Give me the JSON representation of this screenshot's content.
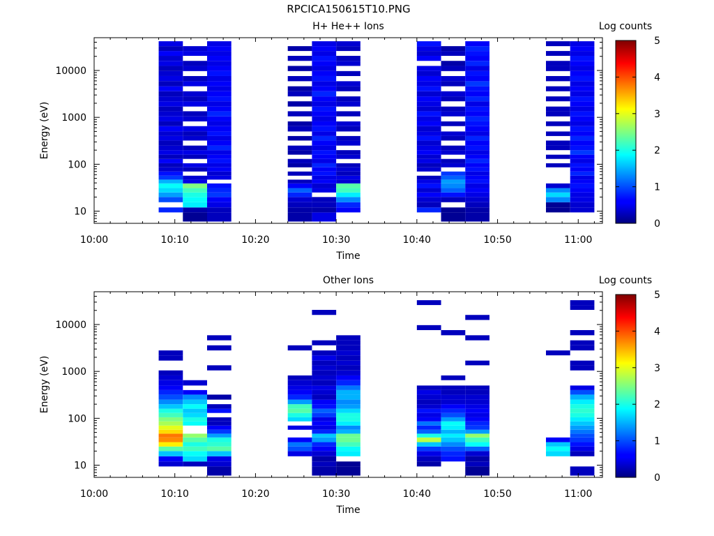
{
  "figure_title": "RPCICA150615T10.PNG",
  "chart_data": [
    {
      "type": "heatmap",
      "title": "H+ He++ Ions",
      "xlabel": "Time",
      "ylabel": "Energy (eV)",
      "yscale": "log",
      "ylim": [
        5.5,
        50000
      ],
      "xlim": [
        "10:00",
        "11:03"
      ],
      "xticks": [
        "10:00",
        "10:10",
        "10:20",
        "10:30",
        "10:40",
        "10:50",
        "11:00"
      ],
      "yticks": [
        "10",
        "100",
        "1000",
        "10000"
      ],
      "colorbar": {
        "label": "Log counts",
        "range": [
          0,
          5
        ],
        "ticks": [
          "0",
          "1",
          "2",
          "3",
          "4",
          "5"
        ]
      },
      "energy_bins_eV": [
        6,
        9.4,
        12,
        15.5,
        20,
        25,
        31,
        39,
        47,
        57,
        70,
        86,
        105,
        130,
        160,
        200,
        250,
        320,
        400,
        500,
        650,
        820,
        1050,
        1350,
        1700,
        2200,
        2800,
        3600,
        4600,
        5900,
        7600,
        9700,
        12500,
        16000,
        20500,
        26000,
        33000,
        42000
      ],
      "time_columns": [
        {
          "start": "10:08",
          "end": "10:11",
          "counts": [
            0,
            0.8,
            0,
            1.0,
            1.4,
            1.7,
            1.9,
            1.5,
            0.9,
            0.7,
            0.4,
            0.3,
            0.6,
            0.3,
            0.5,
            0.4,
            0.3,
            0.5,
            0.4,
            0.6,
            0.3,
            0.5,
            0.4,
            0.3,
            0.5,
            0.4,
            0.3,
            0.6,
            0.3,
            0.5,
            0.4,
            0.3,
            0.5,
            0.4,
            0.6,
            0.3,
            0.5
          ]
        },
        {
          "start": "10:11",
          "end": "10:14",
          "counts": [
            0.1,
            0.2,
            1.8,
            1.9,
            2.0,
            2.2,
            2.5,
            0.5,
            0.4,
            0,
            0.3,
            0.5,
            0,
            0.3,
            0.5,
            0.3,
            0,
            0.4,
            0.3,
            0.5,
            0,
            0.4,
            0.3,
            0,
            0.5,
            0.3,
            0.4,
            0,
            0.5,
            0.3,
            0,
            0.4,
            0.3,
            0,
            0.5,
            0.4,
            0
          ]
        },
        {
          "start": "10:14",
          "end": "10:17",
          "counts": [
            0.3,
            0.3,
            0.5,
            0.6,
            0.9,
            0.8,
            0.7,
            0,
            0.5,
            0.4,
            0.6,
            0.5,
            0.7,
            0.6,
            0.5,
            0.8,
            0.6,
            0.5,
            0.7,
            0.6,
            0.5,
            0.6,
            0.8,
            0.6,
            0.5,
            0.7,
            0.6,
            0.5,
            0.6,
            0.5,
            0.7,
            0.6,
            0.5,
            0.6,
            0.5,
            0.6,
            0.5
          ]
        },
        {
          "start": "10:24",
          "end": "10:27",
          "counts": [
            0.2,
            0.2,
            0.3,
            0.4,
            0.8,
            1.1,
            0.6,
            0.3,
            0,
            0.3,
            0,
            0.2,
            0.3,
            0,
            0.2,
            0.3,
            0,
            0.2,
            0,
            0.3,
            0.2,
            0,
            0.3,
            0,
            0.2,
            0,
            0.3,
            0.2,
            0,
            0.3,
            0,
            0.2,
            0,
            0.3,
            0,
            0.2,
            0
          ]
        },
        {
          "start": "10:27",
          "end": "10:30",
          "counts": [
            0.5,
            0.2,
            0.3,
            0.3,
            0,
            0.5,
            0.4,
            0.6,
            0.5,
            0.7,
            0.6,
            0.8,
            0.5,
            0.6,
            0.7,
            0.5,
            0.6,
            0.8,
            0.5,
            0.7,
            0.6,
            0.5,
            0.6,
            0.7,
            0.5,
            0.6,
            0.8,
            0.6,
            0.5,
            0.7,
            0.6,
            0.5,
            0.6,
            0.7,
            0.5,
            0.6,
            0.5
          ]
        },
        {
          "start": "10:30",
          "end": "10:33",
          "counts": [
            0,
            0.6,
            0.8,
            1.3,
            1.8,
            2.2,
            2.3,
            0.4,
            0.5,
            0.3,
            0.4,
            0.3,
            0,
            0.4,
            0.3,
            0,
            0.4,
            0.3,
            0,
            0.3,
            0.4,
            0,
            0.3,
            0,
            0.4,
            0.3,
            0,
            0.3,
            0.4,
            0,
            0.3,
            0,
            0.4,
            0.3,
            0,
            0.3,
            0.4
          ]
        },
        {
          "start": "10:40",
          "end": "10:43",
          "counts": [
            0,
            0.8,
            0.3,
            0.4,
            0.6,
            0.4,
            0.7,
            0.5,
            0.3,
            0,
            0.4,
            0.3,
            0.5,
            0.4,
            0.6,
            0.5,
            0.4,
            0.7,
            0.5,
            0.4,
            0.6,
            0.5,
            0.7,
            0.4,
            0.5,
            0.6,
            0.4,
            0.7,
            0.5,
            0.6,
            0.4,
            0.5,
            0,
            0.6,
            0.4,
            0.5,
            0.7
          ]
        },
        {
          "start": "10:43",
          "end": "10:46",
          "counts": [
            0.1,
            0.1,
            0,
            0.3,
            0.7,
            1.1,
            1.3,
            1.4,
            1.1,
            0.9,
            0,
            0.4,
            0.3,
            0,
            0.4,
            0.3,
            0,
            0.3,
            0.4,
            0,
            0.3,
            0,
            0.4,
            0.3,
            0,
            0.3,
            0.4,
            0,
            0.3,
            0.4,
            0,
            0.3,
            0.2,
            0,
            0.3,
            0.2,
            0
          ]
        },
        {
          "start": "10:46",
          "end": "10:49",
          "counts": [
            0.2,
            0.2,
            0.3,
            0.4,
            0.5,
            0.6,
            0.5,
            0.7,
            0.6,
            0.5,
            0.7,
            0.6,
            0.8,
            0.6,
            0.5,
            0.7,
            0.6,
            0.8,
            0.5,
            0.6,
            0.7,
            0.8,
            0.6,
            0.7,
            0.5,
            0.8,
            0.6,
            0.7,
            0.9,
            0.6,
            0.7,
            0.5,
            0.8,
            0.6,
            0.7,
            0.8,
            0.6
          ]
        },
        {
          "start": "10:56",
          "end": "10:59",
          "counts": [
            0,
            0.1,
            0.1,
            1.3,
            1.7,
            1.3,
            0.4,
            0,
            0,
            0,
            0,
            0.3,
            0,
            0.3,
            0,
            0.3,
            0.3,
            0,
            0.3,
            0,
            0.3,
            0,
            0.3,
            0.3,
            0,
            0.3,
            0,
            0.3,
            0,
            0.3,
            0,
            0.3,
            0.3,
            0,
            0.3,
            0,
            0.3
          ]
        },
        {
          "start": "10:59",
          "end": "11:02",
          "counts": [
            0,
            0.4,
            0.4,
            0.5,
            0.5,
            0.6,
            0.7,
            0.6,
            0.5,
            0.8,
            0.6,
            0.7,
            0.5,
            0.6,
            0.9,
            0.7,
            0.6,
            0.8,
            0.6,
            0.7,
            0.5,
            0.6,
            0.7,
            0.5,
            0.6,
            0.7,
            0.5,
            0.6,
            0.5,
            0.7,
            0.6,
            0.5,
            0.6,
            0.7,
            0.5,
            0.6,
            0.5
          ]
        }
      ]
    },
    {
      "type": "heatmap",
      "title": "Other Ions",
      "xlabel": "Time",
      "ylabel": "Energy (eV)",
      "yscale": "log",
      "ylim": [
        5.5,
        50000
      ],
      "xlim": [
        "10:00",
        "11:03"
      ],
      "xticks": [
        "10:00",
        "10:10",
        "10:20",
        "10:30",
        "10:40",
        "10:50",
        "11:00"
      ],
      "yticks": [
        "10",
        "100",
        "1000",
        "10000"
      ],
      "colorbar": {
        "label": "Log counts",
        "range": [
          0,
          5
        ],
        "ticks": [
          "0",
          "1",
          "2",
          "3",
          "4",
          "5"
        ]
      },
      "energy_bins_eV": [
        6,
        9.4,
        12,
        15.5,
        20,
        25,
        31,
        39,
        47,
        57,
        70,
        86,
        105,
        130,
        160,
        200,
        250,
        320,
        400,
        500,
        650,
        820,
        1050,
        1350,
        1700,
        2200,
        2800,
        3600,
        4600,
        5900,
        7600,
        9700,
        12500,
        16000,
        20500,
        26000,
        33000,
        42000
      ],
      "time_columns": [
        {
          "start": "10:08",
          "end": "10:11",
          "counts": [
            0,
            0.4,
            0.6,
            1.6,
            2.3,
            3.2,
            3.7,
            3.8,
            3.3,
            3.0,
            2.7,
            2.5,
            2.2,
            2.0,
            1.6,
            1.3,
            1.0,
            0.8,
            0.6,
            0.5,
            0.4,
            0.3,
            0,
            0,
            0.3,
            0.3,
            0,
            0,
            0,
            0,
            0,
            0,
            0,
            0,
            0,
            0,
            0
          ]
        },
        {
          "start": "10:11",
          "end": "10:14",
          "counts": [
            0,
            0.3,
            1.7,
            1.9,
            2.2,
            2.0,
            2.3,
            2.6,
            0,
            0,
            1.9,
            2.0,
            1.7,
            1.6,
            1.9,
            1.6,
            1.3,
            0.6,
            0,
            0.4,
            0,
            0,
            0,
            0,
            0,
            0,
            0,
            0,
            0,
            0,
            0,
            0,
            0,
            0,
            0,
            0,
            0
          ]
        },
        {
          "start": "10:14",
          "end": "10:17",
          "counts": [
            0.2,
            0.4,
            0.5,
            1.6,
            2.3,
            2.1,
            2.0,
            1.4,
            0.9,
            0.6,
            0.3,
            0.3,
            0,
            0.7,
            0.3,
            0,
            0.2,
            0,
            0,
            0,
            0,
            0,
            0.3,
            0,
            0,
            0,
            0.3,
            0,
            0.3,
            0,
            0,
            0,
            0,
            0,
            0,
            0,
            0
          ]
        },
        {
          "start": "10:24",
          "end": "10:27",
          "counts": [
            0,
            0,
            0,
            0.5,
            1.0,
            1.2,
            0.6,
            0,
            0,
            0.5,
            0,
            1.7,
            2.0,
            2.3,
            2.2,
            1.4,
            0.8,
            0.6,
            0.5,
            0.4,
            0.3,
            0,
            0,
            0,
            0,
            0,
            0.3,
            0,
            0,
            0,
            0,
            0,
            0,
            0,
            0,
            0,
            0
          ]
        },
        {
          "start": "10:27",
          "end": "10:30",
          "counts": [
            0.2,
            0.3,
            0.2,
            0.4,
            0.6,
            0.8,
            1.4,
            1.6,
            0.8,
            0.5,
            0.6,
            0.5,
            0.9,
            1.1,
            0.7,
            0.6,
            0.3,
            0.4,
            0.5,
            0.3,
            0.4,
            0.3,
            0.4,
            0.3,
            0.5,
            0.3,
            0,
            0.3,
            0,
            0,
            0,
            0,
            0,
            0.3,
            0,
            0,
            0
          ]
        },
        {
          "start": "10:30",
          "end": "10:33",
          "counts": [
            0.1,
            0.1,
            0,
            1.8,
            1.9,
            2.2,
            2.4,
            2.4,
            1.5,
            1.3,
            1.8,
            2.0,
            2.0,
            1.7,
            1.4,
            1.3,
            1.5,
            1.5,
            1.2,
            0.8,
            0.6,
            0.4,
            0.3,
            0.4,
            0.3,
            0.4,
            0.3,
            0.3,
            0.3,
            0,
            0,
            0,
            0,
            0,
            0,
            0,
            0
          ]
        },
        {
          "start": "10:40",
          "end": "10:43",
          "counts": [
            0,
            0.2,
            0.3,
            0.5,
            0.9,
            1.6,
            2.8,
            2.0,
            1.1,
            0.8,
            1.2,
            0.6,
            0.5,
            0.7,
            0.4,
            0.3,
            0.4,
            0.5,
            0.3,
            0,
            0,
            0,
            0,
            0,
            0,
            0,
            0,
            0,
            0,
            0,
            0.3,
            0,
            0,
            0,
            0,
            0.3,
            0
          ]
        },
        {
          "start": "10:43",
          "end": "10:46",
          "counts": [
            0,
            0,
            0.7,
            0.8,
            1.0,
            1.3,
            1.6,
            1.8,
            1.5,
            1.8,
            1.9,
            1.4,
            1.0,
            0.8,
            0.6,
            0.4,
            0.4,
            0.3,
            0.3,
            0,
            0.3,
            0,
            0,
            0,
            0,
            0,
            0,
            0,
            0,
            0.3,
            0,
            0,
            0,
            0,
            0,
            0,
            0
          ]
        },
        {
          "start": "10:46",
          "end": "10:49",
          "counts": [
            0.1,
            0.3,
            0.2,
            0.4,
            1.1,
            1.9,
            2.2,
            2.6,
            1.4,
            0.9,
            0.8,
            0.6,
            0.5,
            0.6,
            0.5,
            0.4,
            0.4,
            0.3,
            0.3,
            0,
            0,
            0,
            0,
            0.3,
            0,
            0,
            0,
            0,
            0.3,
            0,
            0,
            0,
            0.3,
            0,
            0,
            0,
            0
          ]
        },
        {
          "start": "10:56",
          "end": "10:59",
          "counts": [
            0,
            0,
            0,
            1.7,
            1.9,
            1.6,
            0.6,
            0,
            0,
            0,
            0,
            0,
            0,
            0,
            0,
            0,
            0,
            0,
            0,
            0,
            0,
            0,
            0,
            0,
            0,
            0.3,
            0,
            0,
            0,
            0,
            0,
            0,
            0,
            0,
            0,
            0,
            0
          ]
        },
        {
          "start": "10:59",
          "end": "11:02",
          "counts": [
            0.3,
            0,
            0,
            0.3,
            0.5,
            0.7,
            0.9,
            1.0,
            1.2,
            1.4,
            1.6,
            1.8,
            2.0,
            2.1,
            2.0,
            1.8,
            1.5,
            1.0,
            0.5,
            0,
            0,
            0,
            0.3,
            0.3,
            0,
            0,
            0.3,
            0.3,
            0,
            0.3,
            0,
            0,
            0,
            0,
            0.3,
            0.3,
            0
          ]
        }
      ]
    }
  ]
}
